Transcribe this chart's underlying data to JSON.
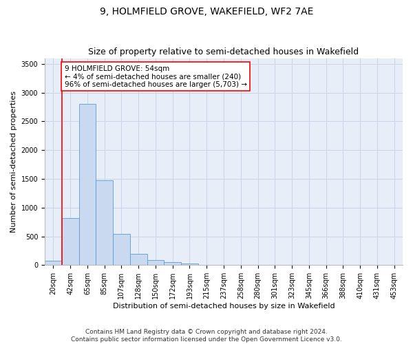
{
  "title_line1": "9, HOLMFIELD GROVE, WAKEFIELD, WF2 7AE",
  "title_line2": "Size of property relative to semi-detached houses in Wakefield",
  "xlabel": "Distribution of semi-detached houses by size in Wakefield",
  "ylabel": "Number of semi-detached properties",
  "categories": [
    "20sqm",
    "42sqm",
    "65sqm",
    "85sqm",
    "107sqm",
    "128sqm",
    "150sqm",
    "172sqm",
    "193sqm",
    "215sqm",
    "237sqm",
    "258sqm",
    "280sqm",
    "301sqm",
    "323sqm",
    "345sqm",
    "366sqm",
    "388sqm",
    "410sqm",
    "431sqm",
    "453sqm"
  ],
  "values": [
    80,
    820,
    2800,
    1480,
    540,
    190,
    90,
    50,
    25,
    10,
    4,
    1,
    0,
    0,
    0,
    0,
    0,
    0,
    0,
    0,
    0
  ],
  "bar_color": "#c8d9f0",
  "bar_edge_color": "#5b9bd5",
  "grid_color": "#c8d4e8",
  "background_color": "#e8eef8",
  "vline_color": "red",
  "vline_x_index": 1,
  "annotation_text": "9 HOLMFIELD GROVE: 54sqm\n← 4% of semi-detached houses are smaller (240)\n96% of semi-detached houses are larger (5,703) →",
  "annotation_box_facecolor": "white",
  "annotation_box_edgecolor": "red",
  "ylim": [
    0,
    3600
  ],
  "yticks": [
    0,
    500,
    1000,
    1500,
    2000,
    2500,
    3000,
    3500
  ],
  "footnote": "Contains HM Land Registry data © Crown copyright and database right 2024.\nContains public sector information licensed under the Open Government Licence v3.0.",
  "title_fontsize": 10,
  "subtitle_fontsize": 9,
  "axis_label_fontsize": 8,
  "tick_fontsize": 7,
  "annotation_fontsize": 7.5,
  "footnote_fontsize": 6.5
}
